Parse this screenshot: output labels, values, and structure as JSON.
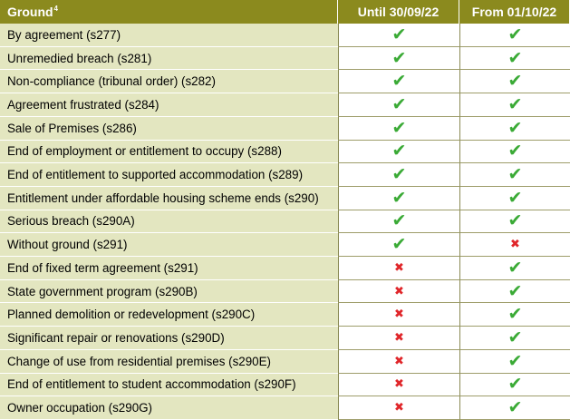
{
  "header": {
    "ground": "Ground",
    "footnote": "4",
    "until": "Until 30/09/22",
    "from": "From 01/10/22"
  },
  "icons": {
    "yes": "check-icon",
    "no": "cross-icon",
    "yes_color": "#3aaa35",
    "no_color": "#e0262a"
  },
  "rows": [
    {
      "ground": "By agreement (s277)",
      "until": true,
      "from": true
    },
    {
      "ground": "Unremedied breach (s281)",
      "until": true,
      "from": true
    },
    {
      "ground": "Non-compliance (tribunal order) (s282)",
      "until": true,
      "from": true
    },
    {
      "ground": "Agreement frustrated (s284)",
      "until": true,
      "from": true
    },
    {
      "ground": "Sale of Premises (s286)",
      "until": true,
      "from": true
    },
    {
      "ground": "End of employment or entitlement to occupy (s288)",
      "until": true,
      "from": true
    },
    {
      "ground": "End of entitlement to supported accommodation (s289)",
      "until": true,
      "from": true
    },
    {
      "ground": "Entitlement under affordable housing scheme ends (s290)",
      "until": true,
      "from": true
    },
    {
      "ground": "Serious breach (s290A)",
      "until": true,
      "from": true
    },
    {
      "ground": "Without ground (s291)",
      "until": true,
      "from": false
    },
    {
      "ground": "End of fixed term agreement (s291)",
      "until": false,
      "from": true
    },
    {
      "ground": "State government program (s290B)",
      "until": false,
      "from": true
    },
    {
      "ground": "Planned demolition or redevelopment (s290C)",
      "until": false,
      "from": true
    },
    {
      "ground": "Significant repair or renovations (s290D)",
      "until": false,
      "from": true
    },
    {
      "ground": "Change of use from residential premises (s290E)",
      "until": false,
      "from": true
    },
    {
      "ground": "End of entitlement to student accommodation (s290F)",
      "until": false,
      "from": true
    },
    {
      "ground": "Owner occupation (s290G)",
      "until": false,
      "from": true
    }
  ]
}
